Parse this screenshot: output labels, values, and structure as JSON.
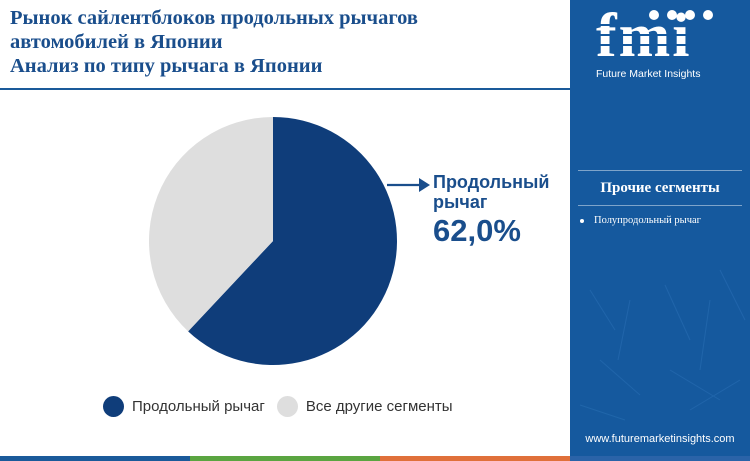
{
  "title": {
    "lines": [
      "Рынок сайлентблоков продольных рычагов",
      "автомобилей в Японии",
      "Анализ по типу рычага в Японии"
    ]
  },
  "chart_data": {
    "type": "pie",
    "slices": [
      {
        "name": "Продольный рычаг",
        "value": 62.0,
        "color": "#0f3d7a"
      },
      {
        "name": "Все другие сегменты",
        "value": 38.0,
        "color": "#dedede"
      }
    ],
    "start_angle_deg": 0,
    "direction": "clockwise",
    "legend_position": "bottom"
  },
  "callout": {
    "label_line1": "Продольный",
    "label_line2": "рычаг",
    "value": "62,0%",
    "arrow_icon": "arrow-right-icon"
  },
  "legend": {
    "items": [
      {
        "label": "Продольный рычаг",
        "color": "#0f3d7a"
      },
      {
        "label": "Все другие сегменты",
        "color": "#dedede"
      }
    ]
  },
  "brand": {
    "logo_text": "fmi",
    "subtitle": "Future Market Insights",
    "website": "www.futuremarketinsights.com",
    "panel_color": "#15599e"
  },
  "side_panel": {
    "heading": "Прочие сегменты",
    "items": [
      "Полупродольный рычаг"
    ]
  },
  "bottom_strip_colors": [
    "#1a5a9a",
    "#5aa541",
    "#e0703a",
    "#2a63a8"
  ]
}
